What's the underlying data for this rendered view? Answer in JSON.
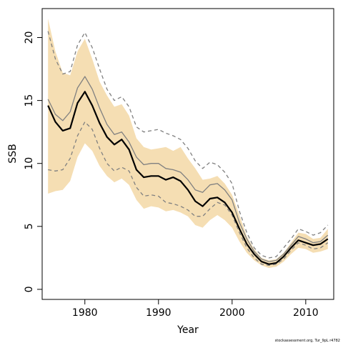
{
  "chart_data": {
    "type": "line",
    "title": "",
    "xlabel": "Year",
    "ylabel": "SSB",
    "credit": "stockassessment.org, Tur_9pL r4782",
    "xlim": [
      1974.2,
      2013.8
    ],
    "ylim": [
      -0.8,
      22.3
    ],
    "x_ticks": [
      1980,
      1990,
      2000,
      2010
    ],
    "y_ticks": [
      0,
      5,
      10,
      15,
      20
    ],
    "x": [
      1975,
      1976,
      1977,
      1978,
      1979,
      1980,
      1981,
      1982,
      1983,
      1984,
      1985,
      1986,
      1987,
      1988,
      1989,
      1990,
      1991,
      1992,
      1993,
      1994,
      1995,
      1996,
      1997,
      1998,
      1999,
      2000,
      2001,
      2002,
      2003,
      2004,
      2005,
      2006,
      2007,
      2008,
      2009,
      2010,
      2011,
      2012,
      2013
    ],
    "series": [
      {
        "role": "band",
        "color": "#f5deb3",
        "lower": [
          7.6,
          7.8,
          7.9,
          8.6,
          10.5,
          11.6,
          11.0,
          9.8,
          9.0,
          8.5,
          8.8,
          8.3,
          7.1,
          6.4,
          6.6,
          6.5,
          6.2,
          6.3,
          6.1,
          5.8,
          5.1,
          4.9,
          5.5,
          5.9,
          5.5,
          4.9,
          3.8,
          2.9,
          2.3,
          1.9,
          1.7,
          1.8,
          2.2,
          2.8,
          3.3,
          3.2,
          2.9,
          3.0,
          3.2
        ],
        "upper": [
          21.5,
          18.9,
          17.2,
          17.0,
          18.9,
          19.9,
          18.3,
          16.5,
          15.4,
          14.5,
          14.7,
          13.8,
          12.0,
          11.3,
          11.1,
          11.2,
          11.3,
          11.0,
          11.3,
          10.4,
          9.6,
          8.7,
          8.8,
          9.0,
          8.4,
          7.5,
          5.9,
          4.2,
          3.2,
          2.5,
          2.3,
          2.4,
          2.9,
          3.7,
          4.5,
          4.4,
          4.0,
          4.1,
          4.8
        ]
      },
      {
        "role": "estimate",
        "color": "#000000",
        "values": [
          14.6,
          13.3,
          12.6,
          12.8,
          14.8,
          15.7,
          14.6,
          13.2,
          12.1,
          11.5,
          11.9,
          11.1,
          9.5,
          8.9,
          9.0,
          9.0,
          8.7,
          8.9,
          8.6,
          7.9,
          7.0,
          6.6,
          7.2,
          7.3,
          6.9,
          6.1,
          4.8,
          3.6,
          2.8,
          2.2,
          2.0,
          2.1,
          2.6,
          3.3,
          3.9,
          3.7,
          3.5,
          3.6,
          4.0
        ]
      },
      {
        "role": "alt-estimate",
        "color": "#808080",
        "values": [
          15.1,
          13.9,
          13.4,
          14.1,
          16.0,
          16.9,
          15.9,
          14.4,
          13.1,
          12.3,
          12.5,
          11.7,
          10.5,
          9.9,
          10.0,
          10.0,
          9.6,
          9.5,
          9.3,
          8.7,
          7.9,
          7.7,
          8.3,
          8.4,
          7.9,
          7.1,
          5.3,
          4.0,
          3.0,
          2.4,
          2.2,
          2.3,
          2.8,
          3.5,
          4.2,
          4.0,
          3.7,
          3.8,
          4.3
        ]
      },
      {
        "role": "alt-lower",
        "color": "#808080",
        "dashed": true,
        "values": [
          9.5,
          9.4,
          9.5,
          10.4,
          12.2,
          13.3,
          12.7,
          11.2,
          10.0,
          9.4,
          9.7,
          9.4,
          8.1,
          7.4,
          7.5,
          7.4,
          6.9,
          6.8,
          6.6,
          6.3,
          5.8,
          5.8,
          6.4,
          6.9,
          6.7,
          5.9,
          4.5,
          3.3,
          2.5,
          2.0,
          1.9,
          2.0,
          2.4,
          3.1,
          3.7,
          3.5,
          3.2,
          3.3,
          3.7
        ]
      },
      {
        "role": "alt-upper",
        "color": "#808080",
        "dashed": true,
        "values": [
          20.5,
          18.3,
          17.1,
          17.3,
          19.4,
          20.4,
          19.2,
          17.5,
          15.9,
          15.0,
          15.3,
          14.5,
          12.9,
          12.5,
          12.6,
          12.7,
          12.4,
          12.2,
          11.9,
          11.2,
          10.2,
          9.6,
          10.1,
          9.9,
          9.3,
          8.4,
          6.2,
          4.5,
          3.3,
          2.7,
          2.5,
          2.6,
          3.3,
          4.0,
          4.8,
          4.6,
          4.3,
          4.5,
          5.1
        ]
      }
    ]
  }
}
